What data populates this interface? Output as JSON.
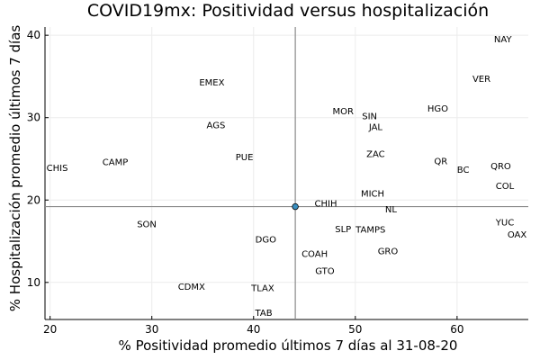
{
  "chart_data": {
    "type": "scatter",
    "title": "COVID19mx: Positividad versus hospitalización",
    "xlabel": "% Positividad promedio últimos 7 días al 31-08-20",
    "ylabel": "% Hospitalización promedio últimos 7 días",
    "xlim": [
      19.5,
      67
    ],
    "ylim": [
      5.5,
      41
    ],
    "xticks": [
      20,
      30,
      40,
      50,
      60
    ],
    "yticks": [
      10,
      20,
      30,
      40
    ],
    "grid": true,
    "reference_lines": {
      "x": 44.1,
      "y": 19.2
    },
    "reference_point": {
      "x": 44.1,
      "y": 19.2,
      "color": "#3a8fc0"
    },
    "labels": [
      {
        "text": "NAY",
        "x": 64.5,
        "y": 39.5
      },
      {
        "text": "VER",
        "x": 62.4,
        "y": 34.7
      },
      {
        "text": "EMEX",
        "x": 35.9,
        "y": 34.3
      },
      {
        "text": "MOR",
        "x": 48.8,
        "y": 30.8
      },
      {
        "text": "SIN",
        "x": 51.4,
        "y": 30.2
      },
      {
        "text": "HGO",
        "x": 58.1,
        "y": 31.1
      },
      {
        "text": "AGS",
        "x": 36.3,
        "y": 29.1
      },
      {
        "text": "JAL",
        "x": 52.0,
        "y": 28.9
      },
      {
        "text": "ZAC",
        "x": 52.0,
        "y": 25.6
      },
      {
        "text": "PUE",
        "x": 39.1,
        "y": 25.2
      },
      {
        "text": "CAMP",
        "x": 26.4,
        "y": 24.6
      },
      {
        "text": "QR",
        "x": 58.4,
        "y": 24.7
      },
      {
        "text": "QRO",
        "x": 64.3,
        "y": 24.1
      },
      {
        "text": "BC",
        "x": 60.6,
        "y": 23.7
      },
      {
        "text": "CHIS",
        "x": 20.7,
        "y": 23.9
      },
      {
        "text": "COL",
        "x": 64.7,
        "y": 21.7
      },
      {
        "text": "MICH",
        "x": 51.7,
        "y": 20.8
      },
      {
        "text": "CHIH",
        "x": 47.1,
        "y": 19.6
      },
      {
        "text": "NL",
        "x": 53.5,
        "y": 18.9
      },
      {
        "text": "SON",
        "x": 29.5,
        "y": 17.1
      },
      {
        "text": "YUC",
        "x": 64.7,
        "y": 17.3
      },
      {
        "text": "SLP",
        "x": 48.8,
        "y": 16.5
      },
      {
        "text": "TAMPS",
        "x": 51.5,
        "y": 16.4
      },
      {
        "text": "OAX",
        "x": 65.9,
        "y": 15.8
      },
      {
        "text": "DGO",
        "x": 41.2,
        "y": 15.2
      },
      {
        "text": "COAH",
        "x": 46.0,
        "y": 13.5
      },
      {
        "text": "GRO",
        "x": 53.2,
        "y": 13.8
      },
      {
        "text": "GTO",
        "x": 47.0,
        "y": 11.4
      },
      {
        "text": "CDMX",
        "x": 33.9,
        "y": 9.5
      },
      {
        "text": "TLAX",
        "x": 40.9,
        "y": 9.3
      },
      {
        "text": "TAB",
        "x": 41.0,
        "y": 6.3
      }
    ]
  }
}
